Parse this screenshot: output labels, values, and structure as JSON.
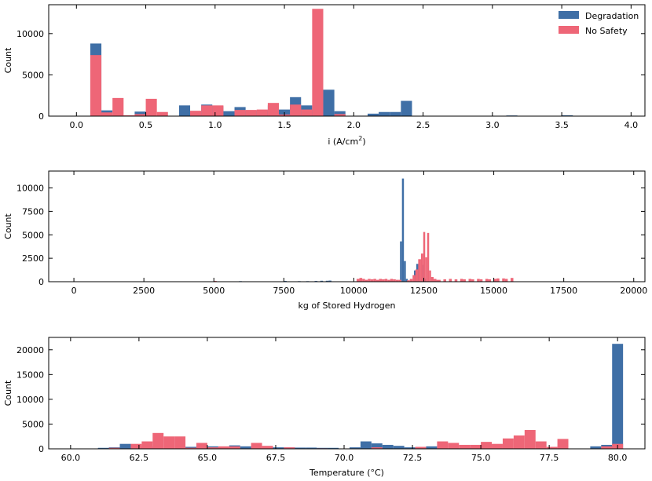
{
  "colors": {
    "degradation": "#3f6fa6",
    "no_safety": "#ee6677"
  },
  "legend": {
    "placement": "top-right",
    "entries": [
      "Degradation",
      "No Safety"
    ]
  },
  "chart_data": [
    {
      "type": "bar",
      "title": "",
      "xlabel": "i (A/cm",
      "xlabel_sup": "2",
      "xlabel_tail": ")",
      "ylabel": "Count",
      "xlim": [
        -0.2,
        4.1
      ],
      "ylim": [
        0,
        13500
      ],
      "xticks": [
        0.0,
        0.5,
        1.0,
        1.5,
        2.0,
        2.5,
        3.0,
        3.5,
        4.0
      ],
      "xtick_labels": [
        "0.0",
        "0.5",
        "1.0",
        "1.5",
        "2.0",
        "2.5",
        "3.0",
        "3.5",
        "4.0"
      ],
      "yticks": [
        0,
        5000,
        10000
      ],
      "ytick_labels": [
        "0",
        "5000",
        "10000"
      ],
      "series": [
        {
          "name": "Degradation",
          "bins": [
            [
              0.1,
              0.18,
              8800
            ],
            [
              0.18,
              0.26,
              700
            ],
            [
              0.26,
              0.34,
              100
            ],
            [
              0.42,
              0.5,
              550
            ],
            [
              0.74,
              0.82,
              1300
            ],
            [
              0.82,
              0.9,
              600
            ],
            [
              0.9,
              0.98,
              1400
            ],
            [
              0.98,
              1.06,
              1200
            ],
            [
              1.06,
              1.14,
              600
            ],
            [
              1.14,
              1.22,
              1100
            ],
            [
              1.22,
              1.3,
              650
            ],
            [
              1.3,
              1.38,
              700
            ],
            [
              1.38,
              1.46,
              1300
            ],
            [
              1.46,
              1.54,
              800
            ],
            [
              1.54,
              1.62,
              2300
            ],
            [
              1.62,
              1.7,
              1300
            ],
            [
              1.7,
              1.78,
              500
            ],
            [
              1.78,
              1.86,
              3200
            ],
            [
              1.86,
              1.94,
              600
            ],
            [
              2.02,
              2.1,
              50
            ],
            [
              2.1,
              2.18,
              300
            ],
            [
              2.18,
              2.26,
              500
            ],
            [
              2.26,
              2.34,
              500
            ],
            [
              2.34,
              2.42,
              1850
            ],
            [
              3.1,
              3.18,
              80
            ],
            [
              3.5,
              3.58,
              100
            ]
          ]
        },
        {
          "name": "No Safety",
          "bins": [
            [
              0.1,
              0.18,
              7400
            ],
            [
              0.18,
              0.26,
              450
            ],
            [
              0.26,
              0.34,
              2200
            ],
            [
              0.34,
              0.42,
              100
            ],
            [
              0.42,
              0.5,
              250
            ],
            [
              0.5,
              0.58,
              2100
            ],
            [
              0.58,
              0.66,
              500
            ],
            [
              0.82,
              0.9,
              650
            ],
            [
              0.9,
              0.98,
              1300
            ],
            [
              0.98,
              1.06,
              1300
            ],
            [
              1.14,
              1.22,
              750
            ],
            [
              1.22,
              1.3,
              750
            ],
            [
              1.3,
              1.38,
              800
            ],
            [
              1.38,
              1.46,
              1600
            ],
            [
              1.46,
              1.54,
              200
            ],
            [
              1.54,
              1.62,
              1400
            ],
            [
              1.62,
              1.7,
              800
            ],
            [
              1.7,
              1.78,
              13000
            ],
            [
              1.86,
              1.94,
              250
            ]
          ]
        }
      ]
    },
    {
      "type": "bar",
      "title": "",
      "xlabel": "kg of Stored Hydrogen",
      "ylabel": "Count",
      "xlim": [
        -900,
        20400
      ],
      "ylim": [
        0,
        11800
      ],
      "xticks": [
        0,
        2500,
        5000,
        7500,
        10000,
        12500,
        15000,
        17500,
        20000
      ],
      "xtick_labels": [
        "0",
        "2500",
        "5000",
        "7500",
        "10000",
        "12500",
        "15000",
        "17500",
        "20000"
      ],
      "yticks": [
        0,
        2500,
        5000,
        7500,
        10000
      ],
      "ytick_labels": [
        "0",
        "2500",
        "5000",
        "7500",
        "10000"
      ],
      "series": [
        {
          "name": "Degradation",
          "bins": [
            [
              5900,
              6000,
              60
            ],
            [
              7500,
              7600,
              80
            ],
            [
              8000,
              8100,
              60
            ],
            [
              8300,
              8400,
              60
            ],
            [
              8600,
              8700,
              80
            ],
            [
              8800,
              8900,
              100
            ],
            [
              9000,
              9100,
              100
            ],
            [
              9100,
              9200,
              120
            ],
            [
              11300,
              11400,
              100
            ],
            [
              11650,
              11720,
              4300
            ],
            [
              11720,
              11790,
              11000
            ],
            [
              11790,
              11860,
              2200
            ],
            [
              11860,
              11930,
              300
            ],
            [
              12150,
              12230,
              1200
            ],
            [
              12230,
              12310,
              1900
            ],
            [
              12310,
              12390,
              1600
            ],
            [
              12450,
              12530,
              1800
            ],
            [
              12530,
              12600,
              300
            ]
          ]
        },
        {
          "name": "No Safety",
          "bins": [
            [
              5000,
              5100,
              80
            ],
            [
              10100,
              10200,
              300
            ],
            [
              10200,
              10300,
              400
            ],
            [
              10300,
              10400,
              300
            ],
            [
              10400,
              10500,
              200
            ],
            [
              10500,
              10600,
              300
            ],
            [
              10600,
              10700,
              250
            ],
            [
              10700,
              10800,
              300
            ],
            [
              10800,
              10900,
              200
            ],
            [
              10900,
              11000,
              300
            ],
            [
              11000,
              11100,
              250
            ],
            [
              11100,
              11200,
              300
            ],
            [
              11200,
              11300,
              200
            ],
            [
              11300,
              11400,
              300
            ],
            [
              11400,
              11500,
              250
            ],
            [
              11500,
              11600,
              200
            ],
            [
              11600,
              11700,
              200
            ],
            [
              11900,
              12000,
              150
            ],
            [
              12000,
              12100,
              300
            ],
            [
              12100,
              12200,
              700
            ],
            [
              12200,
              12300,
              1300
            ],
            [
              12300,
              12400,
              2400
            ],
            [
              12400,
              12480,
              3000
            ],
            [
              12480,
              12550,
              5300
            ],
            [
              12550,
              12620,
              2600
            ],
            [
              12620,
              12690,
              5200
            ],
            [
              12690,
              12760,
              1200
            ],
            [
              12760,
              12850,
              500
            ],
            [
              12850,
              12950,
              300
            ],
            [
              12950,
              13100,
              200
            ],
            [
              13200,
              13300,
              250
            ],
            [
              13400,
              13500,
              300
            ],
            [
              13600,
              13700,
              250
            ],
            [
              13800,
              13900,
              300
            ],
            [
              13900,
              14000,
              250
            ],
            [
              14100,
              14200,
              300
            ],
            [
              14200,
              14300,
              250
            ],
            [
              14400,
              14500,
              300
            ],
            [
              14500,
              14600,
              250
            ],
            [
              14700,
              14800,
              300
            ],
            [
              14800,
              14900,
              250
            ],
            [
              15000,
              15100,
              300
            ],
            [
              15100,
              15200,
              350
            ],
            [
              15300,
              15400,
              350
            ],
            [
              15400,
              15500,
              300
            ],
            [
              15600,
              15700,
              400
            ]
          ]
        }
      ]
    },
    {
      "type": "bar",
      "title": "",
      "xlabel": "Temperature (°C)",
      "ylabel": "Count",
      "xlim": [
        59.2,
        81.0
      ],
      "ylim": [
        0,
        22500
      ],
      "xticks": [
        60.0,
        62.5,
        65.0,
        67.5,
        70.0,
        72.5,
        75.0,
        77.5,
        80.0
      ],
      "xtick_labels": [
        "60.0",
        "62.5",
        "65.0",
        "67.5",
        "70.0",
        "72.5",
        "75.0",
        "77.5",
        "80.0"
      ],
      "yticks": [
        0,
        5000,
        10000,
        15000,
        20000
      ],
      "ytick_labels": [
        "0",
        "5000",
        "10000",
        "15000",
        "20000"
      ],
      "series": [
        {
          "name": "Degradation",
          "bins": [
            [
              61.0,
              61.4,
              200
            ],
            [
              61.4,
              61.8,
              300
            ],
            [
              61.8,
              62.2,
              1000
            ],
            [
              62.2,
              62.6,
              400
            ],
            [
              62.6,
              63.0,
              500
            ],
            [
              64.2,
              64.6,
              400
            ],
            [
              65.0,
              65.4,
              500
            ],
            [
              65.8,
              66.2,
              700
            ],
            [
              66.2,
              66.6,
              500
            ],
            [
              66.6,
              67.0,
              500
            ],
            [
              67.4,
              67.8,
              300
            ],
            [
              67.8,
              68.2,
              300
            ],
            [
              68.2,
              68.6,
              250
            ],
            [
              68.6,
              69.0,
              250
            ],
            [
              69.0,
              69.4,
              200
            ],
            [
              69.4,
              69.8,
              200
            ],
            [
              70.2,
              70.6,
              300
            ],
            [
              70.6,
              71.0,
              1500
            ],
            [
              71.0,
              71.4,
              1100
            ],
            [
              71.4,
              71.8,
              800
            ],
            [
              71.8,
              72.2,
              600
            ],
            [
              72.2,
              72.6,
              300
            ],
            [
              73.0,
              73.4,
              500
            ],
            [
              74.6,
              75.0,
              300
            ],
            [
              75.0,
              75.4,
              100
            ],
            [
              79.0,
              79.4,
              500
            ],
            [
              79.4,
              79.8,
              800
            ],
            [
              79.8,
              80.2,
              21200
            ]
          ]
        },
        {
          "name": "No Safety",
          "bins": [
            [
              61.4,
              61.8,
              200
            ],
            [
              62.2,
              62.6,
              1000
            ],
            [
              62.6,
              63.0,
              1500
            ],
            [
              63.0,
              63.4,
              3200
            ],
            [
              63.4,
              63.8,
              2500
            ],
            [
              63.8,
              64.2,
              2500
            ],
            [
              64.2,
              64.6,
              200
            ],
            [
              64.6,
              65.0,
              1200
            ],
            [
              65.0,
              65.4,
              300
            ],
            [
              65.4,
              65.8,
              500
            ],
            [
              65.8,
              66.2,
              500
            ],
            [
              66.6,
              67.0,
              1200
            ],
            [
              67.0,
              67.4,
              600
            ],
            [
              67.8,
              68.2,
              300
            ],
            [
              69.0,
              69.4,
              100
            ],
            [
              71.0,
              71.4,
              300
            ],
            [
              72.6,
              73.0,
              400
            ],
            [
              73.4,
              73.8,
              1500
            ],
            [
              73.8,
              74.2,
              1200
            ],
            [
              74.2,
              74.6,
              800
            ],
            [
              74.6,
              75.0,
              800
            ],
            [
              75.0,
              75.4,
              1400
            ],
            [
              75.4,
              75.8,
              1000
            ],
            [
              75.8,
              76.2,
              2100
            ],
            [
              76.2,
              76.6,
              2700
            ],
            [
              76.6,
              77.0,
              3800
            ],
            [
              77.0,
              77.4,
              1500
            ],
            [
              77.4,
              77.8,
              400
            ],
            [
              77.8,
              78.2,
              2000
            ],
            [
              79.4,
              79.8,
              500
            ],
            [
              79.8,
              80.2,
              1000
            ]
          ]
        }
      ]
    }
  ]
}
